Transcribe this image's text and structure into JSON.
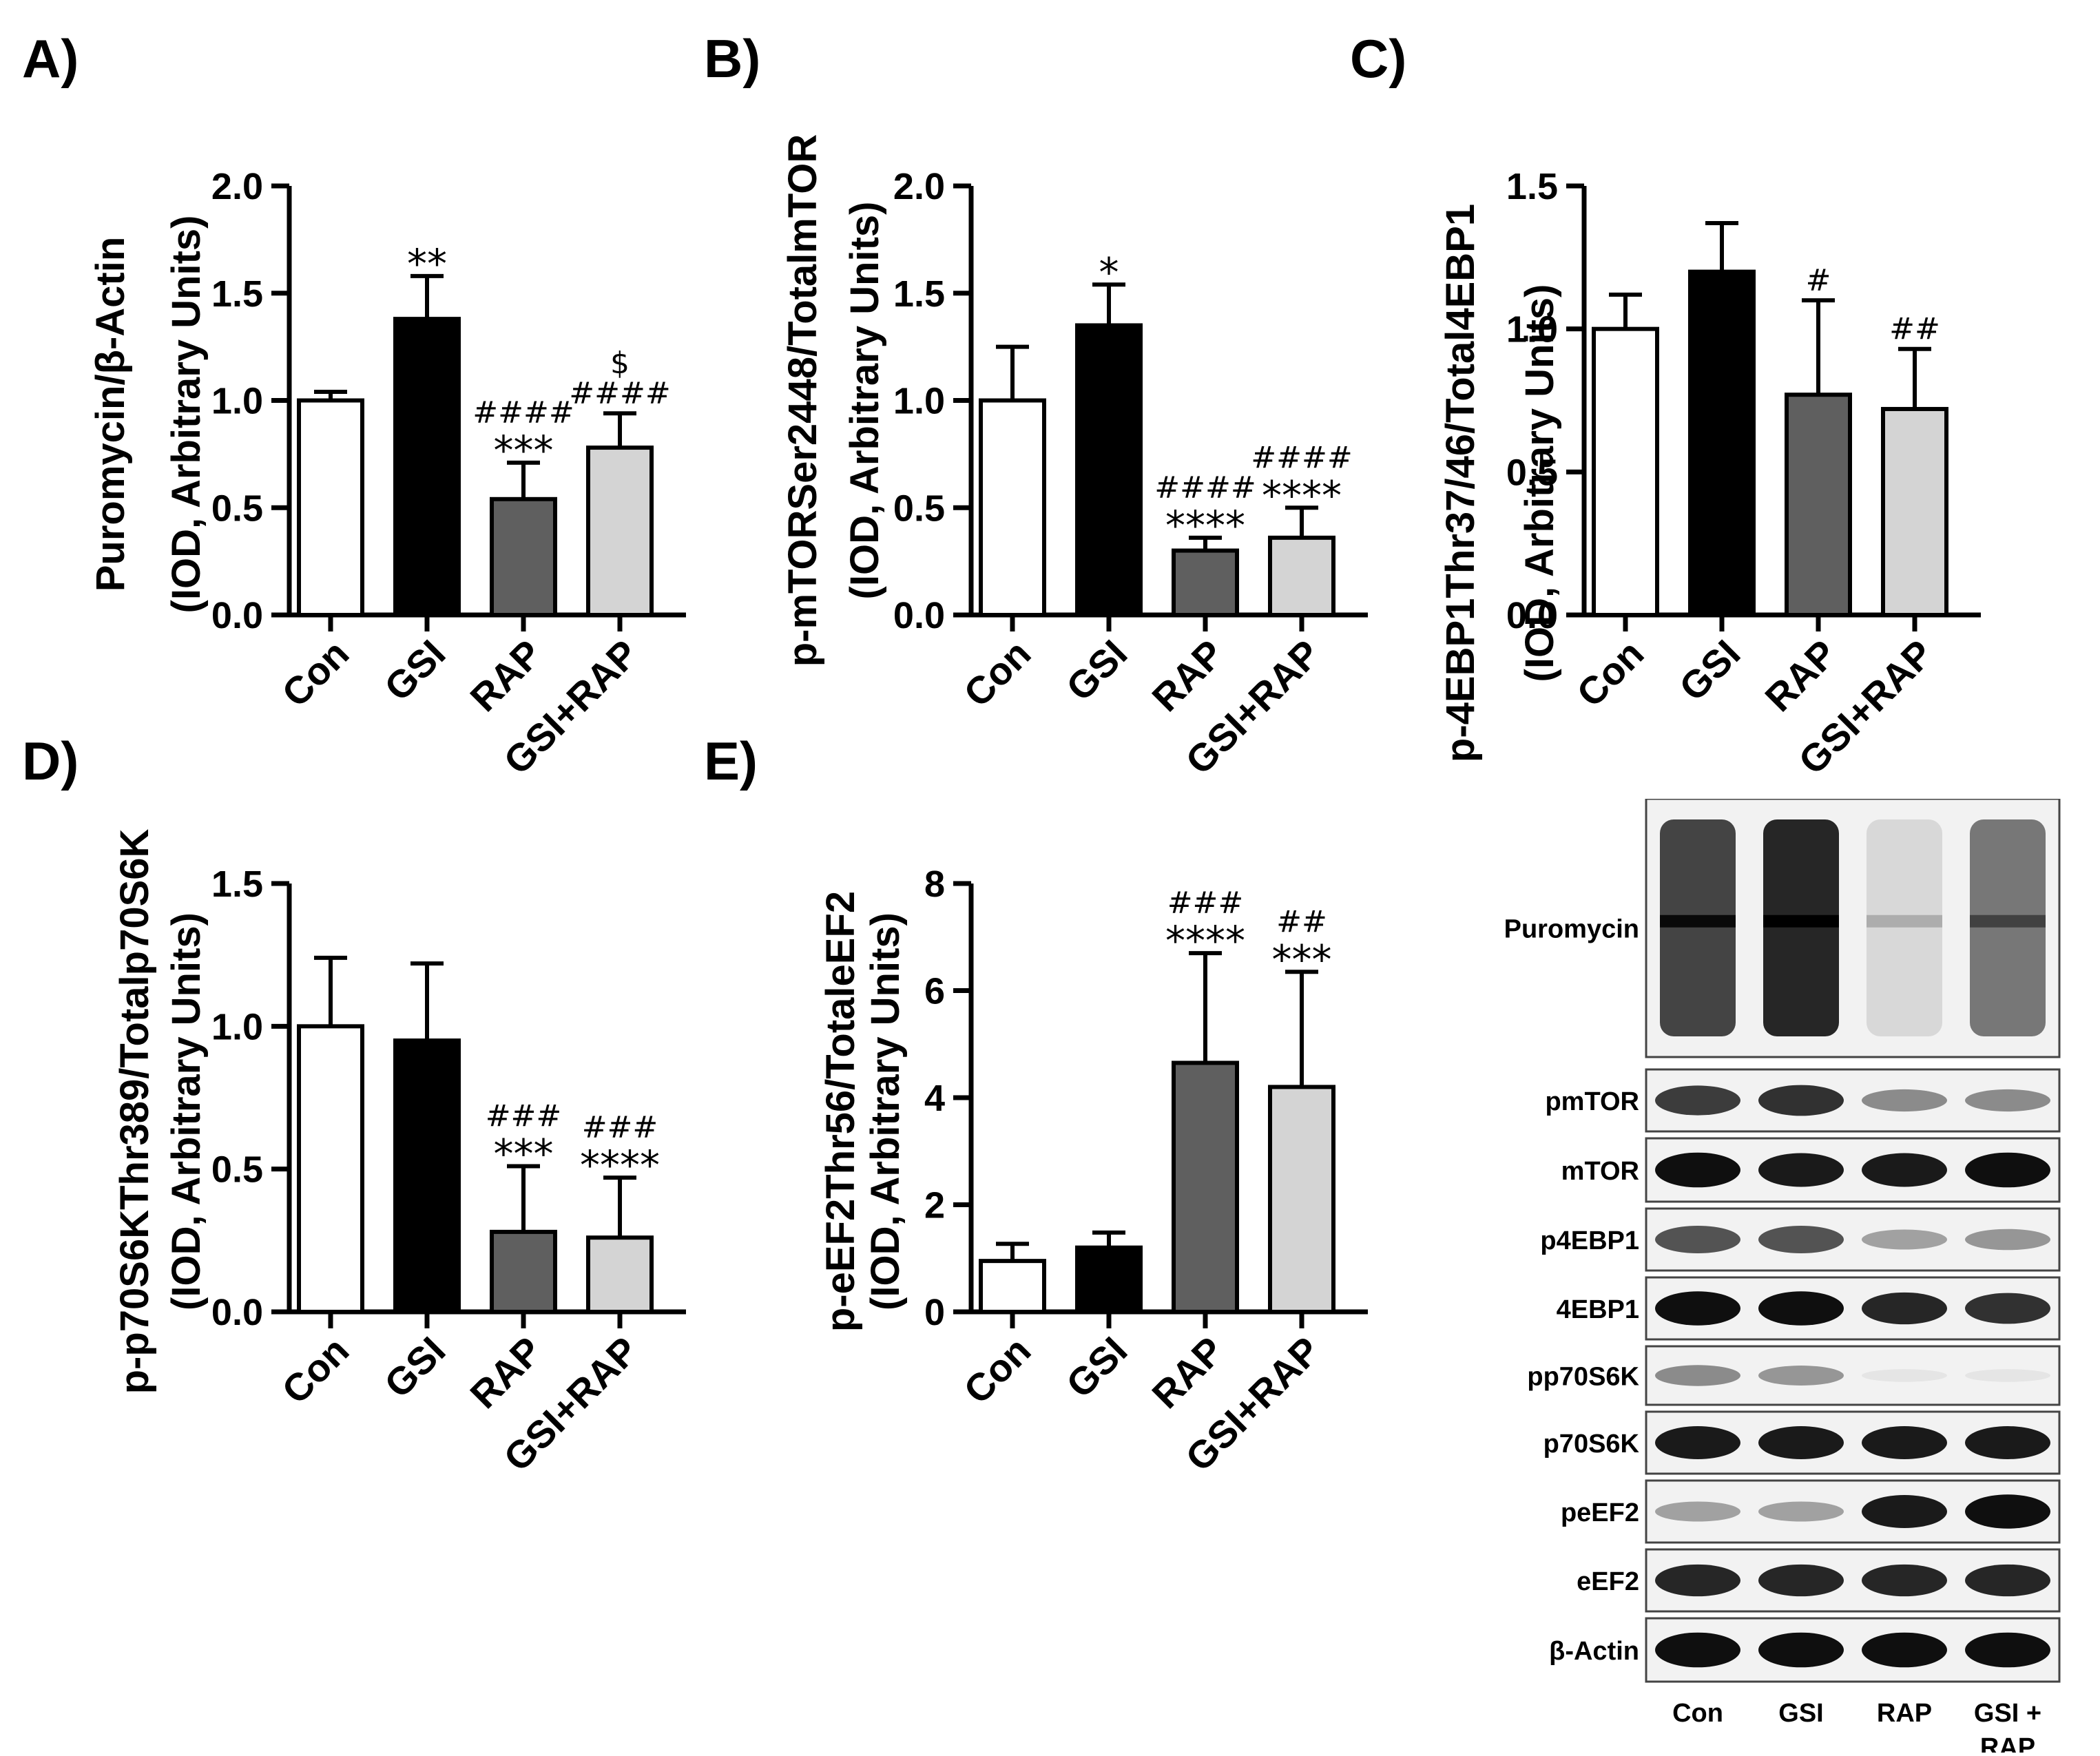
{
  "panel_labels": [
    "A)",
    "B)",
    "C)",
    "D)",
    "E)"
  ],
  "colors": {
    "Con": "#ffffff",
    "GSI": "#000000",
    "RAP": "#5f5f5f",
    "GSI+RAP": "#d4d4d4"
  },
  "chart_data": [
    {
      "type": "bar",
      "panel": "A)",
      "ylabel": [
        "Puromycin/β-Actin",
        "(IOD,  Arbitrary  Units)"
      ],
      "categories": [
        "Con",
        "GSI",
        "RAP",
        "GSI+RAP"
      ],
      "values": [
        1.0,
        1.38,
        0.54,
        0.78
      ],
      "errors": [
        0.04,
        0.2,
        0.17,
        0.16
      ],
      "annotations": [
        [],
        [
          "**"
        ],
        [
          "####",
          "***"
        ],
        [
          "$",
          "####"
        ]
      ],
      "ylim": [
        0,
        2.0
      ],
      "yticks": [
        "0.0",
        "0.5",
        "1.0",
        "1.5",
        "2.0"
      ]
    },
    {
      "type": "bar",
      "panel": "B)",
      "ylabel": [
        "p-mTORSer2448/TotalmTOR",
        "(IOD,  Arbitrary  Units)"
      ],
      "categories": [
        "Con",
        "GSI",
        "RAP",
        "GSI+RAP"
      ],
      "values": [
        1.0,
        1.35,
        0.3,
        0.36
      ],
      "errors": [
        0.25,
        0.19,
        0.06,
        0.14
      ],
      "annotations": [
        [],
        [
          "*"
        ],
        [
          "####",
          "****"
        ],
        [
          "####",
          "****"
        ]
      ],
      "ylim": [
        0,
        2.0
      ],
      "yticks": [
        "0.0",
        "0.5",
        "1.0",
        "1.5",
        "2.0"
      ]
    },
    {
      "type": "bar",
      "panel": "C)",
      "ylabel": [
        "p-4EBP1Thr37/46/Total4EBP1",
        "(IOD,  Arbitrary  Units)"
      ],
      "categories": [
        "Con",
        "GSI",
        "RAP",
        "GSI+RAP"
      ],
      "values": [
        1.0,
        1.2,
        0.77,
        0.72
      ],
      "errors": [
        0.12,
        0.17,
        0.33,
        0.21
      ],
      "annotations": [
        [],
        [],
        [
          "#"
        ],
        [
          "##"
        ]
      ],
      "ylim": [
        0,
        1.5
      ],
      "yticks": [
        "0.0",
        "0.5",
        "1.0",
        "1.5"
      ]
    },
    {
      "type": "bar",
      "panel": "D)",
      "ylabel": [
        "p-p70S6KThr389/Totalp70S6K",
        "(IOD,  Arbitrary  Units)"
      ],
      "categories": [
        "Con",
        "GSI",
        "RAP",
        "GSI+RAP"
      ],
      "values": [
        1.0,
        0.95,
        0.28,
        0.26
      ],
      "errors": [
        0.24,
        0.27,
        0.23,
        0.21
      ],
      "annotations": [
        [],
        [],
        [
          "###",
          "***"
        ],
        [
          "###",
          "****"
        ]
      ],
      "ylim": [
        0,
        1.5
      ],
      "yticks": [
        "0.0",
        "0.5",
        "1.0",
        "1.5"
      ]
    },
    {
      "type": "bar",
      "panel": "E)",
      "ylabel": [
        "p-eEF2Thr56/TotaleEF2",
        "(IOD,  Arbitrary  Units)"
      ],
      "categories": [
        "Con",
        "GSI",
        "RAP",
        "GSI+RAP"
      ],
      "values": [
        0.95,
        1.2,
        4.65,
        4.2
      ],
      "errors": [
        0.32,
        0.28,
        2.05,
        2.15
      ],
      "annotations": [
        [],
        [],
        [
          "###",
          "****"
        ],
        [
          "##",
          "***"
        ]
      ],
      "ylim": [
        0,
        8
      ],
      "yticks": [
        "0",
        "2",
        "4",
        "6",
        "8"
      ]
    }
  ],
  "blot": {
    "rows": [
      {
        "label": "Puromycin",
        "intensity": [
          0.85,
          1.0,
          0.12,
          0.6
        ]
      },
      {
        "label": "pmTOR",
        "intensity": [
          0.8,
          0.85,
          0.45,
          0.45
        ]
      },
      {
        "label": "mTOR",
        "intensity": [
          1.0,
          0.95,
          0.95,
          1.0
        ]
      },
      {
        "label": "p4EBP1",
        "intensity": [
          0.7,
          0.7,
          0.35,
          0.4
        ]
      },
      {
        "label": "4EBP1",
        "intensity": [
          1.0,
          1.0,
          0.9,
          0.85
        ]
      },
      {
        "label": "pp70S6K",
        "intensity": [
          0.45,
          0.4,
          0.05,
          0.05
        ]
      },
      {
        "label": "p70S6K",
        "intensity": [
          0.95,
          0.95,
          0.95,
          0.95
        ]
      },
      {
        "label": "peEF2",
        "intensity": [
          0.35,
          0.35,
          0.95,
          1.0
        ]
      },
      {
        "label": "eEF2",
        "intensity": [
          0.9,
          0.9,
          0.9,
          0.9
        ]
      },
      {
        "label": "β-Actin",
        "intensity": [
          1.0,
          1.0,
          1.0,
          1.0
        ]
      }
    ],
    "lanes": [
      [
        "Con"
      ],
      [
        "GSI"
      ],
      [
        "RAP"
      ],
      [
        "GSI +",
        "RAP"
      ]
    ]
  }
}
